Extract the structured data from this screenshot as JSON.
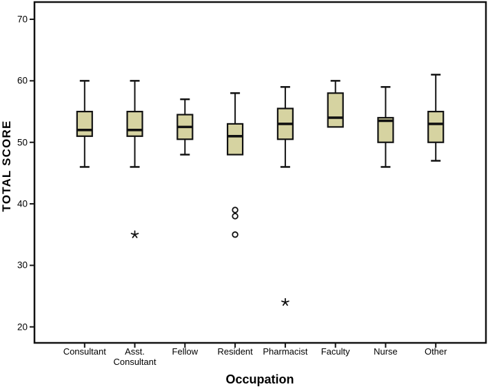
{
  "chart_data": {
    "type": "boxplot",
    "title": "",
    "xlabel": "Occupation",
    "ylabel": "TOTAL SCORE",
    "ylim": [
      17.4,
      72.8
    ],
    "yticks": [
      20,
      30,
      40,
      50,
      60,
      70
    ],
    "grid": false,
    "legend": "none",
    "box_fill": "#d6d3a1",
    "line_color": "#111111",
    "background": "#ffffff",
    "outlier_marker": "circle",
    "extreme_marker": "star",
    "categories": [
      "Consultant",
      "Asst.\nConsultant",
      "Fellow",
      "Resident",
      "Pharmacist",
      "Faculty",
      "Nurse",
      "Other"
    ],
    "series": [
      {
        "category": "Consultant",
        "min": 46,
        "q1": 51,
        "median": 52,
        "q3": 55,
        "max": 60,
        "outliers": [],
        "extremes": []
      },
      {
        "category": "Asst. Consultant",
        "min": 46,
        "q1": 51,
        "median": 52,
        "q3": 55,
        "max": 60,
        "outliers": [],
        "extremes": [
          35
        ]
      },
      {
        "category": "Fellow",
        "min": 48,
        "q1": 50.5,
        "median": 52.5,
        "q3": 54.5,
        "max": 57,
        "outliers": [],
        "extremes": []
      },
      {
        "category": "Resident",
        "min": 48,
        "q1": 48,
        "median": 51,
        "q3": 53,
        "max": 58,
        "outliers": [
          39,
          38,
          35
        ],
        "extremes": []
      },
      {
        "category": "Pharmacist",
        "min": 46,
        "q1": 50.5,
        "median": 53,
        "q3": 55.5,
        "max": 59,
        "outliers": [],
        "extremes": [
          24
        ]
      },
      {
        "category": "Faculty",
        "min": 52.5,
        "q1": 52.5,
        "median": 54,
        "q3": 58,
        "max": 60,
        "outliers": [],
        "extremes": []
      },
      {
        "category": "Nurse",
        "min": 46,
        "q1": 50,
        "median": 53.5,
        "q3": 54,
        "max": 59,
        "outliers": [],
        "extremes": []
      },
      {
        "category": "Other",
        "min": 47,
        "q1": 50,
        "median": 53,
        "q3": 55,
        "max": 61,
        "outliers": [],
        "extremes": []
      }
    ]
  }
}
